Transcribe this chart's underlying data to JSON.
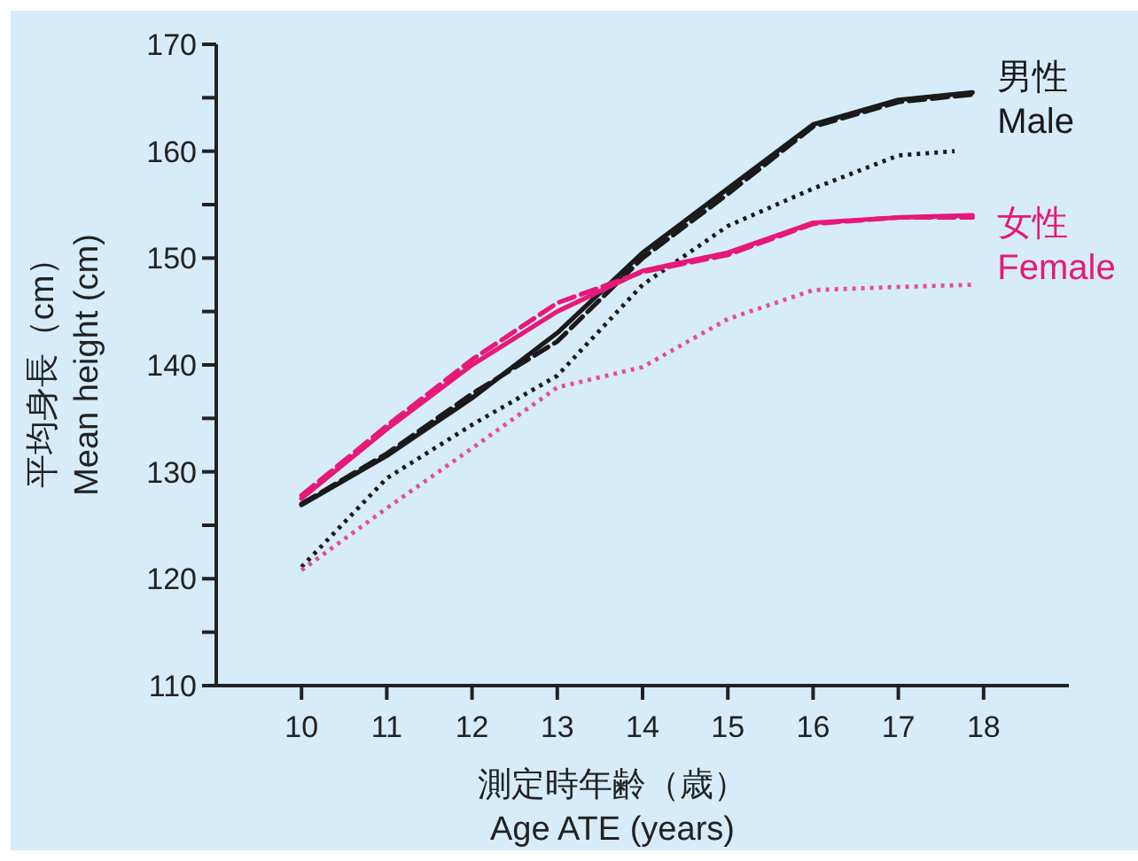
{
  "chart_data": {
    "type": "line",
    "xlabel": "測定時年齢（歳）\nAge ATE (years)",
    "ylabel": "平均身長（cm）\nMean height (cm)",
    "xlim": [
      9,
      19
    ],
    "xticks": [
      10,
      11,
      12,
      13,
      14,
      15,
      16,
      17,
      18
    ],
    "ylim": [
      110,
      170
    ],
    "yticks": [
      110,
      {
        "value": 115,
        "label": null
      },
      120,
      {
        "value": 125,
        "label": null
      },
      130,
      {
        "value": 135,
        "label": null
      },
      140,
      {
        "value": 145,
        "label": null
      },
      150,
      {
        "value": 155,
        "label": null
      },
      160,
      {
        "value": 165,
        "label": null
      },
      170
    ],
    "grid": false,
    "marker": "none",
    "series": [
      {
        "name": "男性\nMale",
        "color": "#1a1a1a",
        "line_style": "solid",
        "x": [
          10,
          11,
          12,
          13,
          14,
          15,
          16,
          17,
          17.87
        ],
        "values": [
          126.9,
          131.5,
          136.9,
          143,
          150.5,
          156.5,
          162.5,
          164.8,
          165.5
        ]
      },
      {
        "color": "#1a1a1a",
        "line_style": "dashed",
        "x": [
          10,
          11,
          12,
          13,
          14,
          15,
          16,
          17,
          17.87
        ],
        "values": [
          127,
          131.7,
          137.3,
          142.2,
          150,
          156,
          162.3,
          164.6,
          165.3
        ]
      },
      {
        "color": "#1a1a1a",
        "line_style": "dotted",
        "x": [
          10,
          11,
          12,
          13,
          14,
          15,
          16,
          17,
          17.66
        ],
        "values": [
          121.1,
          129.4,
          134.4,
          139,
          147.5,
          153,
          156.5,
          159.6,
          160
        ]
      },
      {
        "name": "女性\nFemale",
        "color": "#e6197a",
        "line_style": "solid",
        "x": [
          10,
          11,
          12,
          13,
          14,
          15,
          16,
          17,
          17.87
        ],
        "values": [
          127.5,
          134,
          140,
          145,
          148.8,
          150.5,
          153.3,
          153.8,
          154
        ]
      },
      {
        "color": "#e6197a",
        "line_style": "dashed",
        "x": [
          10,
          11,
          12,
          13,
          14,
          15,
          16,
          17,
          17.87
        ],
        "values": [
          127.8,
          134.3,
          140.5,
          145.8,
          148.7,
          150.3,
          153.2,
          153.8,
          153.8
        ]
      },
      {
        "color": "#e6508c",
        "line_style": "dotted",
        "x": [
          10,
          11,
          12,
          13,
          14,
          15,
          16,
          17,
          17.87
        ],
        "values": [
          120.8,
          126.6,
          132.2,
          137.9,
          139.8,
          144.3,
          147,
          147.3,
          147.5
        ]
      }
    ]
  }
}
